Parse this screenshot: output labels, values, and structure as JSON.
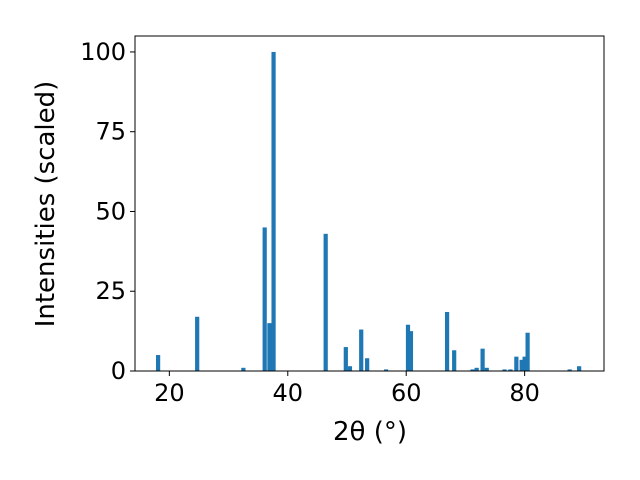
{
  "chart_data": {
    "type": "bar",
    "xlabel": "2θ (°)",
    "ylabel": "Intensities (scaled)",
    "x": [
      18.1,
      24.7,
      32.5,
      36.1,
      36.9,
      37.6,
      46.4,
      49.8,
      50.5,
      52.4,
      53.4,
      56.6,
      60.3,
      60.8,
      66.9,
      68.1,
      71.2,
      71.9,
      72.9,
      73.6,
      76.6,
      77.6,
      78.6,
      79.5,
      80.0,
      80.5,
      87.6,
      89.2
    ],
    "values": [
      5,
      17,
      1,
      45,
      15,
      100,
      43,
      7.5,
      1.5,
      13,
      4,
      0.5,
      14.5,
      12.5,
      18.5,
      6.5,
      0.5,
      1,
      7,
      1,
      0.5,
      0.5,
      4.5,
      3.5,
      4.5,
      12,
      0.5,
      1.5
    ],
    "color": "#1f77b4",
    "xlim": [
      14.2,
      93.4
    ],
    "xticks": [
      20,
      40,
      60,
      80
    ],
    "ylim": [
      0,
      105
    ],
    "yticks": [
      0,
      25,
      50,
      75,
      100
    ]
  }
}
